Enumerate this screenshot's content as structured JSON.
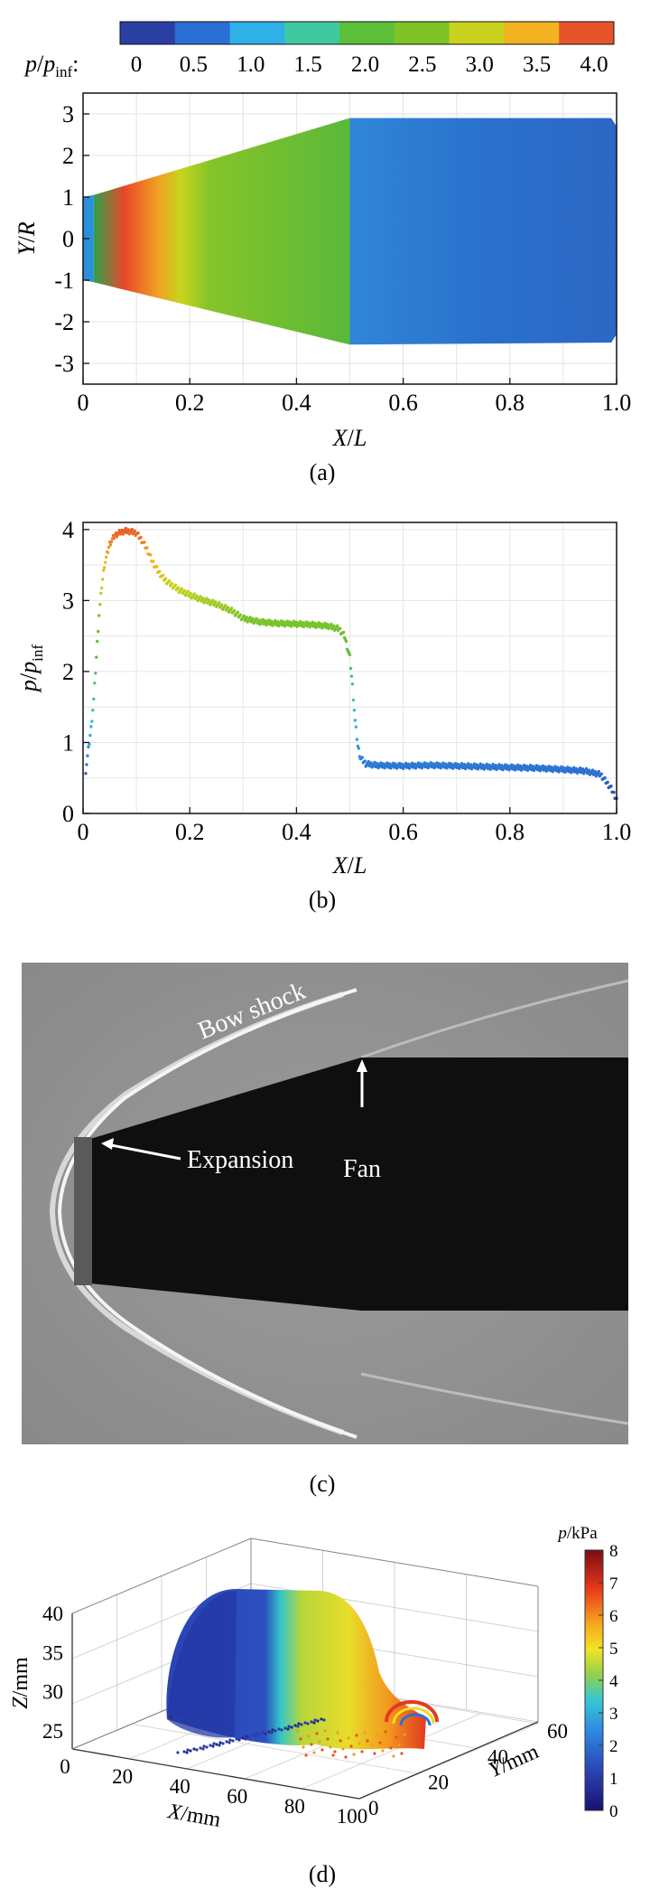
{
  "colorbar_a": {
    "ticks": [
      "0",
      "0.5",
      "1.0",
      "1.5",
      "2.0",
      "2.5",
      "3.0",
      "3.5",
      "4.0"
    ],
    "label_var": "p",
    "label_sub1": "p",
    "label_sub2": "inf",
    "label_colon": ":",
    "colors": [
      "#2b3ea1",
      "#2a6fd3",
      "#2fb0e6",
      "#3ec9a1",
      "#5cbf3a",
      "#7ec424",
      "#c9d21c",
      "#f3b221",
      "#e8542a"
    ]
  },
  "panels": [
    {
      "caption": "(a)"
    },
    {
      "caption": "(b)"
    },
    {
      "caption": "(c)"
    },
    {
      "caption": "(d)"
    }
  ],
  "chart_data": [
    {
      "type": "heatmap",
      "xlabel": "X/L",
      "ylabel": "Y/R",
      "xticks": [
        "0",
        "0.2",
        "0.4",
        "0.6",
        "0.8",
        "1.0"
      ],
      "yticks": [
        "-3",
        "-2",
        "-1",
        "0",
        "1",
        "2",
        "3"
      ],
      "xlim": [
        0,
        1.0
      ],
      "ylim": [
        -3.5,
        3.5
      ],
      "value_range": [
        0,
        4.2
      ],
      "regions": [
        {
          "x": [
            0.0,
            0.02
          ],
          "half_width": [
            1.0,
            1.05
          ],
          "value": 0.9
        },
        {
          "x": [
            0.02,
            0.5
          ],
          "half_width": [
            1.05,
            2.9
          ],
          "value": 2.8,
          "peak": {
            "x": 0.1,
            "value": 4.0
          }
        },
        {
          "x": [
            0.5,
            1.0
          ],
          "half_width": [
            2.9,
            2.9
          ],
          "value": 0.7
        }
      ]
    },
    {
      "type": "scatter",
      "xlabel": "X/L",
      "ylabel": "p/p_inf",
      "ylabel_var": "p",
      "ylabel_sub1": "p",
      "ylabel_sub2": "inf",
      "xticks": [
        "0",
        "0.2",
        "0.4",
        "0.6",
        "0.8",
        "1.0"
      ],
      "yticks": [
        "0",
        "1",
        "2",
        "3",
        "4"
      ],
      "xlim": [
        0,
        1.0
      ],
      "ylim": [
        0,
        4.1
      ],
      "x": [
        0.005,
        0.01,
        0.015,
        0.02,
        0.025,
        0.03,
        0.035,
        0.04,
        0.05,
        0.06,
        0.07,
        0.08,
        0.09,
        0.1,
        0.11,
        0.12,
        0.13,
        0.14,
        0.15,
        0.16,
        0.18,
        0.2,
        0.22,
        0.25,
        0.28,
        0.3,
        0.33,
        0.36,
        0.4,
        0.43,
        0.46,
        0.48,
        0.49,
        0.5,
        0.505,
        0.51,
        0.515,
        0.52,
        0.53,
        0.55,
        0.6,
        0.65,
        0.7,
        0.75,
        0.8,
        0.85,
        0.9,
        0.94,
        0.97,
        0.99,
        1.0
      ],
      "y": [
        0.6,
        0.9,
        1.2,
        1.6,
        2.2,
        2.8,
        3.2,
        3.5,
        3.8,
        3.92,
        3.96,
        3.98,
        3.97,
        3.95,
        3.85,
        3.72,
        3.55,
        3.42,
        3.32,
        3.25,
        3.15,
        3.08,
        3.02,
        2.95,
        2.85,
        2.75,
        2.7,
        2.68,
        2.67,
        2.66,
        2.64,
        2.6,
        2.5,
        2.2,
        1.8,
        1.3,
        0.95,
        0.78,
        0.7,
        0.68,
        0.67,
        0.68,
        0.67,
        0.66,
        0.65,
        0.64,
        0.62,
        0.6,
        0.55,
        0.35,
        0.2
      ]
    },
    {
      "type": "image",
      "annotations": [
        "Bow shock",
        "Expansion",
        "Fan"
      ]
    },
    {
      "type": "scatter",
      "xlabel": "X/mm",
      "ylabel": "Z/mm",
      "zlabel": "Y/mm",
      "xticks": [
        "0",
        "20",
        "40",
        "60",
        "80",
        "100"
      ],
      "yticks": [
        "25",
        "30",
        "35",
        "40"
      ],
      "zticks": [
        "0",
        "20",
        "40",
        "60"
      ],
      "colorbar_title": "p/kPa",
      "colorbar_title_var": "p",
      "colorbar_title_unit": "/kPa",
      "colorbar_ticks": [
        "0",
        "1",
        "2",
        "3",
        "4",
        "5",
        "6",
        "7",
        "8"
      ],
      "value_range": [
        0,
        8
      ]
    }
  ]
}
